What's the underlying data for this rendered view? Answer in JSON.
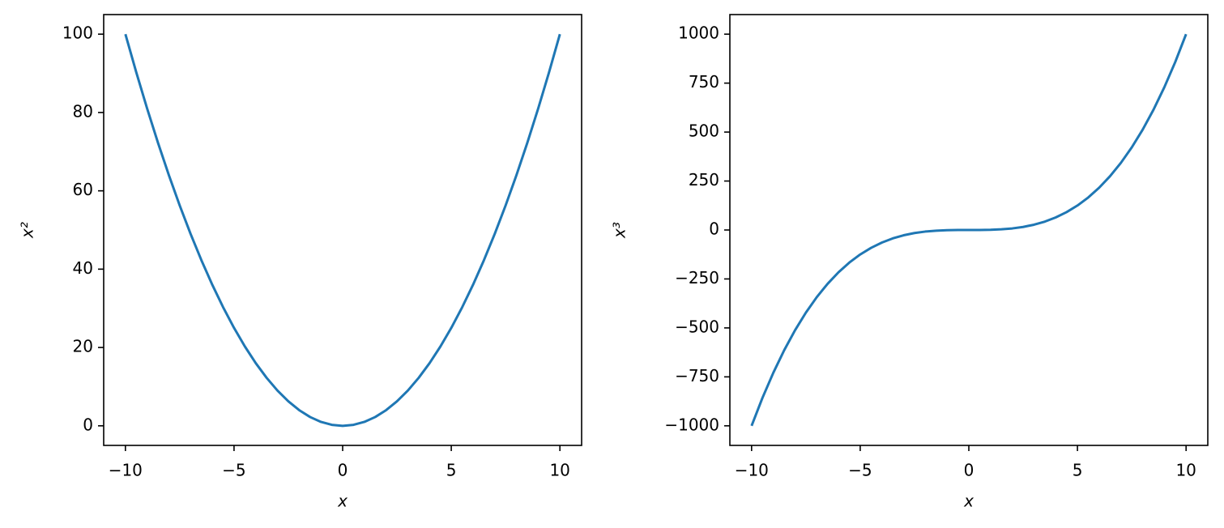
{
  "chart_data": [
    {
      "type": "line",
      "xlabel": "x",
      "ylabel": "x²",
      "x": [
        -10,
        -9.5,
        -9,
        -8.5,
        -8,
        -7.5,
        -7,
        -6.5,
        -6,
        -5.5,
        -5,
        -4.5,
        -4,
        -3.5,
        -3,
        -2.5,
        -2,
        -1.5,
        -1,
        -0.5,
        0,
        0.5,
        1,
        1.5,
        2,
        2.5,
        3,
        3.5,
        4,
        4.5,
        5,
        5.5,
        6,
        6.5,
        7,
        7.5,
        8,
        8.5,
        9,
        9.5,
        10
      ],
      "series": [
        {
          "color": "#1f77b4",
          "values": [
            100,
            90.25,
            81,
            72.25,
            64,
            56.25,
            49,
            42.25,
            36,
            30.25,
            25,
            20.25,
            16,
            12.25,
            9,
            6.25,
            4,
            2.25,
            1,
            0.25,
            0,
            0.25,
            1,
            2.25,
            4,
            6.25,
            9,
            12.25,
            16,
            20.25,
            25,
            30.25,
            36,
            42.25,
            49,
            56.25,
            64,
            72.25,
            81,
            90.25,
            100
          ]
        }
      ],
      "xlim": [
        -11,
        11
      ],
      "ylim": [
        -5,
        105
      ],
      "xticks": [
        {
          "value": -10,
          "label": "−10"
        },
        {
          "value": -5,
          "label": "−5"
        },
        0,
        5,
        10
      ],
      "yticks": [
        0,
        20,
        40,
        60,
        80,
        100
      ]
    },
    {
      "type": "line",
      "xlabel": "x",
      "ylabel": "x³",
      "x": [
        -10,
        -9.5,
        -9,
        -8.5,
        -8,
        -7.5,
        -7,
        -6.5,
        -6,
        -5.5,
        -5,
        -4.5,
        -4,
        -3.5,
        -3,
        -2.5,
        -2,
        -1.5,
        -1,
        -0.5,
        0,
        0.5,
        1,
        1.5,
        2,
        2.5,
        3,
        3.5,
        4,
        4.5,
        5,
        5.5,
        6,
        6.5,
        7,
        7.5,
        8,
        8.5,
        9,
        9.5,
        10
      ],
      "series": [
        {
          "color": "#1f77b4",
          "values": [
            -1000,
            -857.375,
            -729,
            -614.125,
            -512,
            -421.875,
            -343,
            -274.625,
            -216,
            -166.375,
            -125,
            -91.125,
            -64,
            -42.875,
            -27,
            -15.625,
            -8,
            -3.375,
            -1,
            -0.125,
            0,
            0.125,
            1,
            3.375,
            8,
            15.625,
            27,
            42.875,
            64,
            91.125,
            125,
            166.375,
            216,
            274.625,
            343,
            421.875,
            512,
            614.125,
            729,
            857.375,
            1000
          ]
        }
      ],
      "xlim": [
        -11,
        11
      ],
      "ylim": [
        -1100,
        1100
      ],
      "xticks": [
        {
          "value": -10,
          "label": "−10"
        },
        {
          "value": -5,
          "label": "−5"
        },
        0,
        5,
        10
      ],
      "yticks": [
        {
          "value": -1000,
          "label": "−1000"
        },
        {
          "value": -750,
          "label": "−750"
        },
        {
          "value": -500,
          "label": "−500"
        },
        {
          "value": -250,
          "label": "−250"
        },
        0,
        250,
        500,
        750,
        1000
      ]
    }
  ]
}
